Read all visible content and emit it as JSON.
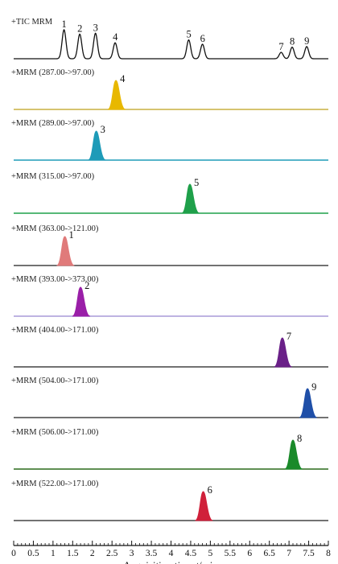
{
  "chart_data": {
    "type": "line",
    "xlabel_parts": [
      "Acquisition time ",
      "t",
      "/min"
    ],
    "xlim": [
      0,
      8
    ],
    "xticks": [
      "0",
      "0.5",
      "1",
      "1.5",
      "2",
      "2.5",
      "3",
      "3.5",
      "4",
      "4.5",
      "5",
      "5.5",
      "6",
      "6.5",
      "7",
      "7.5",
      "8"
    ],
    "tic": {
      "label": "+TIC MRM",
      "color": "#111111",
      "peaks": [
        {
          "id": "1",
          "rt": 1.28,
          "height": 1.0
        },
        {
          "id": "2",
          "rt": 1.68,
          "height": 0.85
        },
        {
          "id": "3",
          "rt": 2.08,
          "height": 0.88
        },
        {
          "id": "4",
          "rt": 2.58,
          "height": 0.55
        },
        {
          "id": "5",
          "rt": 4.45,
          "height": 0.65
        },
        {
          "id": "6",
          "rt": 4.8,
          "height": 0.5
        },
        {
          "id": "7",
          "rt": 6.8,
          "height": 0.22
        },
        {
          "id": "8",
          "rt": 7.08,
          "height": 0.4
        },
        {
          "id": "9",
          "rt": 7.45,
          "height": 0.42
        }
      ]
    },
    "series": [
      {
        "label": "+MRM (287.00->97.00)",
        "peak_id": "4",
        "rt": 2.6,
        "color": "#e8b800",
        "baseline": "#c8b040"
      },
      {
        "label": "+MRM (289.00->97.00)",
        "peak_id": "3",
        "rt": 2.1,
        "color": "#1e9bb8",
        "baseline": "#1e9bb8"
      },
      {
        "label": "+MRM (315.00->97.00)",
        "peak_id": "5",
        "rt": 4.48,
        "color": "#1fa04a",
        "baseline": "#1fa04a"
      },
      {
        "label": "+MRM (363.00->121.00)",
        "peak_id": "1",
        "rt": 1.3,
        "color": "#e07a7a",
        "baseline": "#444444"
      },
      {
        "label": "+MRM (393.00->373.00)",
        "peak_id": "2",
        "rt": 1.7,
        "color": "#9a1fa8",
        "baseline": "#a89ad8"
      },
      {
        "label": "+MRM (404.00->171.00)",
        "peak_id": "7",
        "rt": 6.83,
        "color": "#6a2088",
        "baseline": "#444444"
      },
      {
        "label": "+MRM (504.00->171.00)",
        "peak_id": "9",
        "rt": 7.47,
        "color": "#1f4fa8",
        "baseline": "#444444"
      },
      {
        "label": "+MRM (506.00->171.00)",
        "peak_id": "8",
        "rt": 7.1,
        "color": "#1a8a2a",
        "baseline": "#2a6a1a"
      },
      {
        "label": "+MRM (522.00->171.00)",
        "peak_id": "6",
        "rt": 4.82,
        "color": "#d0203a",
        "baseline": "#444444"
      }
    ]
  }
}
